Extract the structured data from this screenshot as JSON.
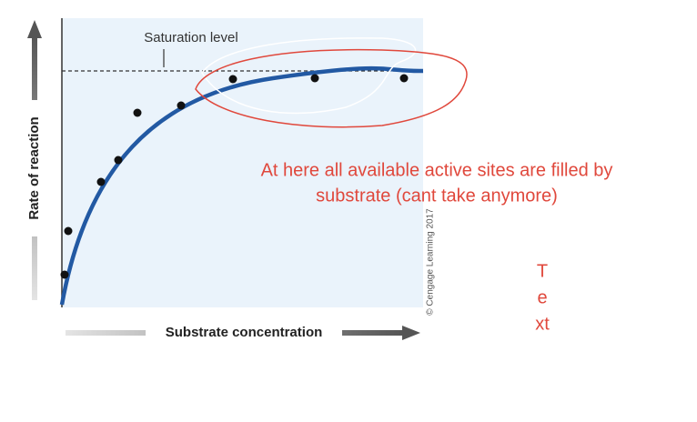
{
  "figure": {
    "saturation_label": "Saturation level",
    "y_axis_label": "Rate of reaction",
    "x_axis_label": "Substrate concentration",
    "credit": "© Cengage Learning 2017"
  },
  "annotation": {
    "lines": [
      "At here all available active sites are filled by",
      "substrate (cant take anymore)"
    ],
    "side_text": [
      "T",
      "e",
      "xt"
    ]
  }
}
